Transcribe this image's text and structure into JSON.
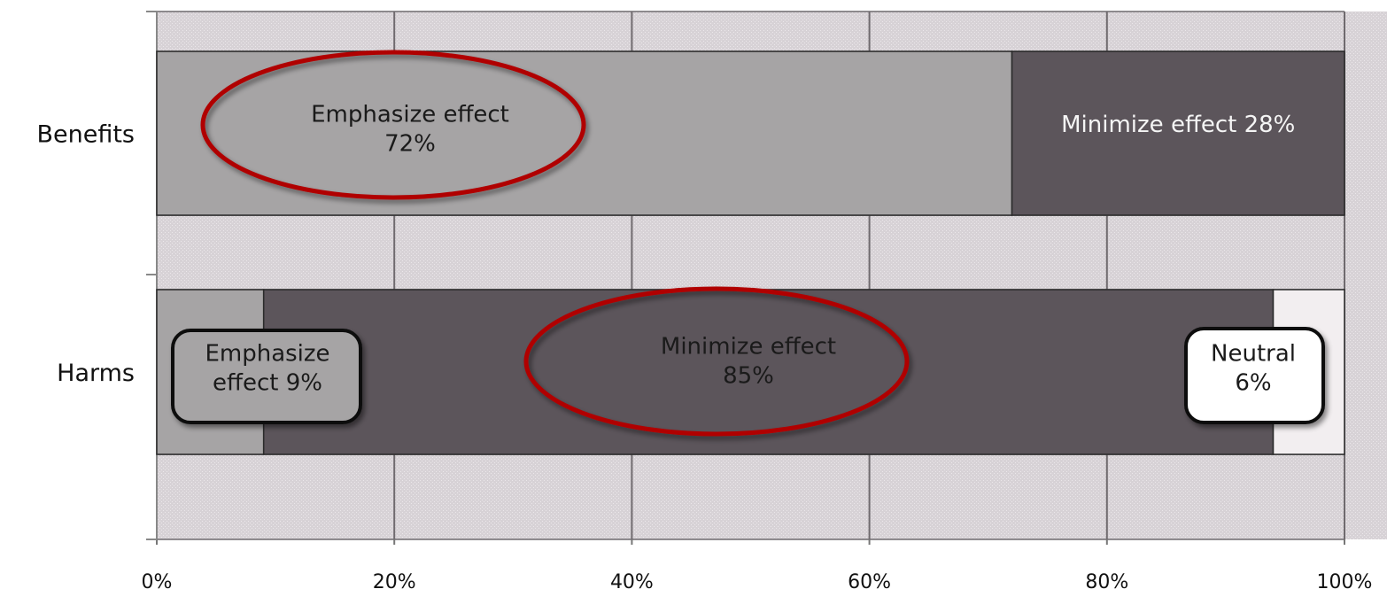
{
  "chart_data": {
    "type": "bar",
    "orientation": "horizontal",
    "stacked": true,
    "title": "",
    "xlabel": "",
    "ylabel": "",
    "xlim": [
      0,
      100
    ],
    "x_ticks": [
      "0%",
      "20%",
      "40%",
      "60%",
      "80%",
      "100%"
    ],
    "grid": true,
    "categories": [
      "Benefits",
      "Harms"
    ],
    "bars": [
      {
        "category": "Benefits",
        "segments": [
          {
            "name": "Emphasize effect",
            "value": 72,
            "label_lines": [
              "Emphasize effect",
              "72%"
            ],
            "color": "#a6a4a5",
            "text_color": "#1a1a1a",
            "callout": "ellipse"
          },
          {
            "name": "Minimize effect",
            "value": 28,
            "label_lines": [
              "Minimize effect 28%"
            ],
            "color": "#5c555b",
            "text_color": "#f5f5f5",
            "callout": "none"
          }
        ]
      },
      {
        "category": "Harms",
        "segments": [
          {
            "name": "Emphasize effect",
            "value": 9,
            "label_lines": [
              "Emphasize",
              "effect 9%"
            ],
            "color": "#a6a4a5",
            "text_color": "#1a1a1a",
            "callout": "box"
          },
          {
            "name": "Minimize effect",
            "value": 85,
            "label_lines": [
              "Minimize effect",
              "85%"
            ],
            "color": "#5c555b",
            "text_color": "#1a1a1a",
            "callout": "ellipse"
          },
          {
            "name": "Neutral",
            "value": 6,
            "label_lines": [
              "Neutral",
              "6%"
            ],
            "color": "#f2eef0",
            "text_color": "#1a1a1a",
            "callout": "box"
          }
        ]
      }
    ],
    "colors": {
      "plot_background": "#d7d2d6",
      "grid": "#6f6a6e",
      "callout_ellipse": "#b00000",
      "callout_box_border": "#111111"
    }
  }
}
